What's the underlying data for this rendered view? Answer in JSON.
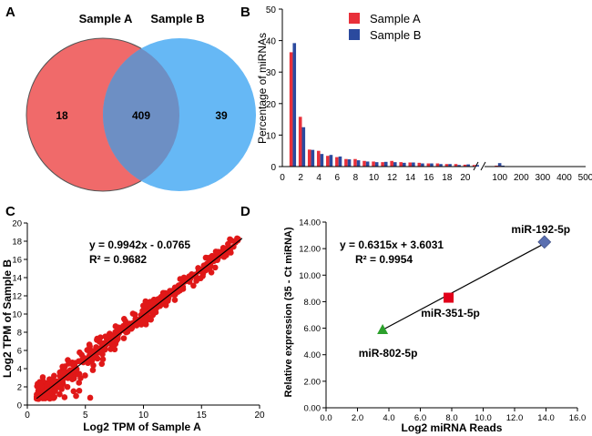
{
  "panel_labels": {
    "a": "A",
    "b": "B",
    "c": "C",
    "d": "D"
  },
  "colors": {
    "sample_a": "#f06a6a",
    "sample_b": "#66b8f5",
    "overlap": "#6d8fc4",
    "bar_a": "#e8303a",
    "bar_b": "#2b4a9e",
    "scatter_point": "#e01818",
    "fit_line": "#000000",
    "marker_802": "#2ca02c",
    "marker_351": "#e2001a",
    "marker_192": "#5a6fb0"
  },
  "chart_data": [
    {
      "panel": "A",
      "type": "venn",
      "sets": [
        "Sample A",
        "Sample B"
      ],
      "only_a": "18",
      "both": "409",
      "only_b": "39"
    },
    {
      "panel": "B",
      "type": "bar",
      "ylabel": "Percentage of miRNAs",
      "ylim": [
        0,
        50
      ],
      "yticks": [
        "0",
        "10",
        "20",
        "30",
        "40",
        "50"
      ],
      "xticks_left": [
        "0",
        "2",
        "4",
        "6",
        "8",
        "10",
        "12",
        "14",
        "16",
        "18",
        "20"
      ],
      "xticks_right": [
        "100",
        "200",
        "300",
        "400",
        "500"
      ],
      "legend": [
        "Sample A",
        "Sample B"
      ],
      "categories": [
        1,
        2,
        3,
        4,
        5,
        6,
        7,
        8,
        9,
        10,
        11,
        12,
        13,
        14,
        15,
        16,
        17,
        18,
        19,
        20,
        21
      ],
      "series": [
        {
          "name": "Sample A",
          "values": [
            36.3,
            15.8,
            5.4,
            5.0,
            3.4,
            3.0,
            2.4,
            2.4,
            1.8,
            1.6,
            1.4,
            1.8,
            1.4,
            1.3,
            1.2,
            1.0,
            1.0,
            0.8,
            0.8,
            0.6,
            0.5
          ]
        },
        {
          "name": "Sample B",
          "values": [
            39.2,
            12.5,
            5.3,
            4.0,
            3.7,
            3.2,
            2.3,
            2.0,
            1.6,
            1.4,
            1.5,
            1.4,
            1.2,
            1.3,
            1.0,
            1.0,
            0.8,
            0.8,
            0.5,
            0.7,
            0.5
          ]
        }
      ],
      "tail": {
        "x": [
          85,
          100
        ],
        "sample_a": [
          0.3,
          0.2
        ],
        "sample_b": [
          1.1,
          0.3
        ]
      }
    },
    {
      "panel": "C",
      "type": "scatter",
      "xlabel": "Log2 TPM of Sample A",
      "ylabel": "Log2 TPM of Sample B",
      "xlim": [
        0,
        20
      ],
      "ylim": [
        0,
        20
      ],
      "xticks": [
        "0",
        "5",
        "10",
        "15",
        "20"
      ],
      "yticks": [
        "0",
        "2",
        "4",
        "6",
        "8",
        "10",
        "12",
        "14",
        "16",
        "18",
        "20"
      ],
      "equation": "y = 0.9942x - 0.0765",
      "r2": "R² = 0.9682",
      "fit": {
        "slope": 0.9942,
        "intercept": -0.0765,
        "x_range": [
          0.8,
          18.5
        ]
      },
      "n_points": 427
    },
    {
      "panel": "D",
      "type": "scatter",
      "xlabel": "Log2 miRNA Reads",
      "ylabel": "Relative expression (35 - Ct miRNA)",
      "xlim": [
        0,
        16
      ],
      "ylim": [
        0,
        14
      ],
      "xticks": [
        "0.0",
        "2.0",
        "4.0",
        "6.0",
        "8.0",
        "10.0",
        "12.0",
        "14.0",
        "16.0"
      ],
      "yticks": [
        "0.00",
        "2.00",
        "4.00",
        "6.00",
        "8.00",
        "10.00",
        "12.00",
        "14.00"
      ],
      "equation": "y = 0.6315x + 3.6031",
      "r2": "R² = 0.9954",
      "points": [
        {
          "label": "miR-802-5p",
          "x": 3.6,
          "y": 5.9,
          "marker": "triangle"
        },
        {
          "label": "miR-351-5p",
          "x": 7.8,
          "y": 8.3,
          "marker": "square"
        },
        {
          "label": "miR-192-5p",
          "x": 13.9,
          "y": 12.5,
          "marker": "diamond"
        }
      ],
      "fit": {
        "slope": 0.6315,
        "intercept": 3.6031,
        "x_range": [
          3.6,
          13.9
        ]
      }
    }
  ]
}
